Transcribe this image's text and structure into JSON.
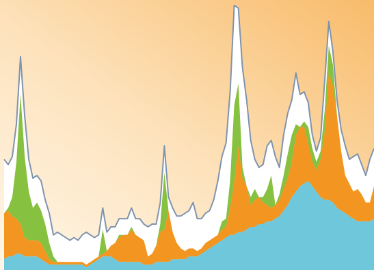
{
  "chart_data": {
    "type": "area",
    "stacking": "stacked",
    "title": "",
    "xlabel": "",
    "ylabel": "",
    "axes_visible": false,
    "grid": false,
    "legend": "none",
    "x": [
      0,
      1,
      2,
      3,
      4,
      5,
      6,
      7,
      8,
      9,
      10,
      11,
      12,
      13,
      14,
      15,
      16,
      17,
      18,
      19,
      20,
      21,
      22,
      23,
      24,
      25,
      26,
      27,
      28,
      29,
      30,
      31,
      32,
      33,
      34,
      35,
      36,
      37,
      38,
      39,
      40,
      41,
      42,
      43,
      44,
      45,
      46,
      47,
      48,
      49,
      50,
      51,
      52,
      53,
      54,
      55,
      56,
      57,
      58,
      59,
      60,
      61,
      62,
      63,
      64,
      65,
      66,
      67,
      68,
      69,
      70,
      71,
      72,
      73,
      74,
      75,
      76,
      77,
      78,
      79,
      80,
      81,
      82,
      83,
      84,
      85,
      86,
      87,
      88,
      89,
      90
    ],
    "ylim": [
      0,
      100
    ],
    "colors": {
      "background_top": "#f8bb6a",
      "background_bottom": "#fff6e8",
      "outline": "#7f93ad"
    },
    "series": [
      {
        "color": "#6fc7dc",
        "values": [
          4,
          5,
          5,
          6,
          6,
          5,
          5,
          5,
          5,
          4,
          3,
          2,
          2,
          2,
          2,
          2,
          2,
          2,
          2,
          2,
          1,
          2,
          3,
          4,
          5,
          5,
          5,
          4,
          3,
          3,
          3,
          3,
          3,
          3,
          2,
          2,
          2,
          3,
          3,
          3,
          3,
          4,
          4,
          4,
          4,
          5,
          5,
          5,
          6,
          7,
          8,
          9,
          10,
          11,
          12,
          13,
          13,
          14,
          14,
          15,
          16,
          16,
          17,
          17,
          18,
          18,
          19,
          20,
          22,
          24,
          27,
          29,
          31,
          32,
          33,
          31,
          29,
          27,
          26,
          26,
          25,
          23,
          22,
          21,
          20,
          19,
          18,
          18,
          18,
          18,
          19
        ]
      },
      {
        "color": "#f29621",
        "values": [
          17,
          17,
          15,
          13,
          11,
          7,
          6,
          6,
          6,
          6,
          4,
          2,
          1,
          1,
          1,
          1,
          1,
          1,
          1,
          1,
          1,
          1,
          1,
          1,
          1,
          2,
          4,
          6,
          9,
          10,
          10,
          12,
          10,
          9,
          9,
          3,
          4,
          6,
          11,
          12,
          19,
          10,
          6,
          4,
          3,
          3,
          3,
          2,
          2,
          3,
          3,
          3,
          3,
          4,
          4,
          10,
          20,
          32,
          20,
          16,
          8,
          10,
          10,
          8,
          6,
          5,
          5,
          6,
          8,
          10,
          13,
          21,
          22,
          21,
          14,
          9,
          8,
          14,
          25,
          47,
          43,
          34,
          22,
          14,
          12,
          10,
          12,
          10,
          7,
          7,
          12
        ]
      },
      {
        "color": "#86c13f",
        "values": [
          0,
          1,
          7,
          21,
          48,
          30,
          18,
          12,
          14,
          12,
          10,
          6,
          2,
          0,
          0,
          0,
          0,
          0,
          0,
          0,
          0,
          0,
          0,
          0,
          9,
          0,
          0,
          0,
          1,
          0,
          0,
          1,
          0,
          0,
          0,
          0,
          0,
          0,
          3,
          21,
          0,
          0,
          0,
          0,
          0,
          0,
          0,
          0,
          0,
          0,
          0,
          0,
          0,
          3,
          3,
          10,
          28,
          23,
          4,
          0,
          3,
          4,
          0,
          2,
          6,
          12,
          0,
          2,
          5,
          9,
          10,
          4,
          0,
          2,
          6,
          5,
          3,
          3,
          8,
          10,
          8,
          0,
          0,
          0,
          0,
          0,
          0,
          0,
          0,
          0,
          0
        ]
      },
      {
        "color": "#ffffff",
        "values": [
          20,
          16,
          15,
          14,
          14,
          15,
          12,
          11,
          10,
          11,
          9,
          11,
          8,
          11,
          10,
          9,
          8,
          9,
          8,
          10,
          12,
          10,
          8,
          8,
          8,
          7,
          7,
          6,
          6,
          6,
          6,
          7,
          6,
          7,
          6,
          11,
          11,
          8,
          8,
          10,
          5,
          9,
          10,
          12,
          14,
          14,
          17,
          12,
          11,
          11,
          11,
          14,
          20,
          24,
          28,
          33,
          37,
          28,
          37,
          32,
          21,
          11,
          11,
          12,
          16,
          13,
          18,
          10,
          15,
          15,
          13,
          19,
          12,
          11,
          9,
          5,
          4,
          5,
          11,
          9,
          5,
          6,
          8,
          11,
          9,
          13,
          13,
          11,
          10,
          16,
          14
        ]
      }
    ]
  }
}
